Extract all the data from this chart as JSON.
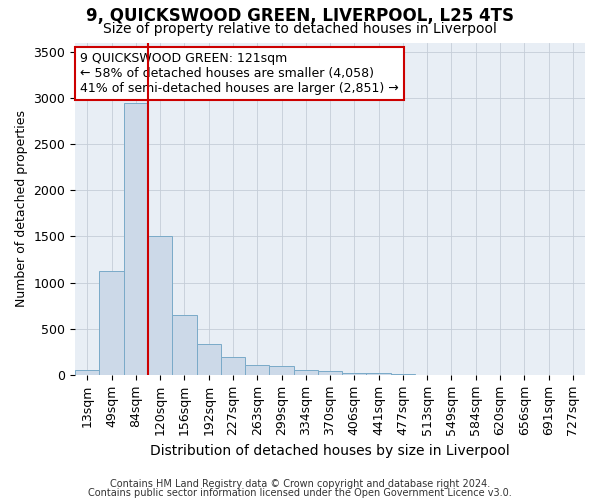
{
  "title": "9, QUICKSWOOD GREEN, LIVERPOOL, L25 4TS",
  "subtitle": "Size of property relative to detached houses in Liverpool",
  "xlabel": "Distribution of detached houses by size in Liverpool",
  "ylabel": "Number of detached properties",
  "categories": [
    "13sqm",
    "49sqm",
    "84sqm",
    "120sqm",
    "156sqm",
    "192sqm",
    "227sqm",
    "263sqm",
    "299sqm",
    "334sqm",
    "370sqm",
    "406sqm",
    "441sqm",
    "477sqm",
    "513sqm",
    "549sqm",
    "584sqm",
    "620sqm",
    "656sqm",
    "691sqm",
    "727sqm"
  ],
  "values": [
    50,
    1125,
    2950,
    1510,
    650,
    330,
    195,
    105,
    100,
    55,
    40,
    25,
    20,
    8,
    2,
    0,
    0,
    0,
    0,
    0,
    0
  ],
  "bar_color": "#ccd9e8",
  "bar_edge_color": "#7aaac8",
  "vline_index": 3,
  "vline_color": "#cc0000",
  "annotation_line1": "9 QUICKSWOOD GREEN: 121sqm",
  "annotation_line2": "← 58% of detached houses are smaller (4,058)",
  "annotation_line3": "41% of semi-detached houses are larger (2,851) →",
  "annotation_box_color": "#ffffff",
  "annotation_box_edge_color": "#cc0000",
  "footer_line1": "Contains HM Land Registry data © Crown copyright and database right 2024.",
  "footer_line2": "Contains public sector information licensed under the Open Government Licence v3.0.",
  "background_color": "#e8eef5",
  "grid_color": "#c5cdd8",
  "ylim": [
    0,
    3600
  ],
  "yticks": [
    0,
    500,
    1000,
    1500,
    2000,
    2500,
    3000,
    3500
  ],
  "title_fontsize": 12,
  "subtitle_fontsize": 10,
  "ylabel_fontsize": 9,
  "xlabel_fontsize": 10,
  "tick_fontsize": 9,
  "footer_fontsize": 7,
  "annotation_fontsize": 9
}
